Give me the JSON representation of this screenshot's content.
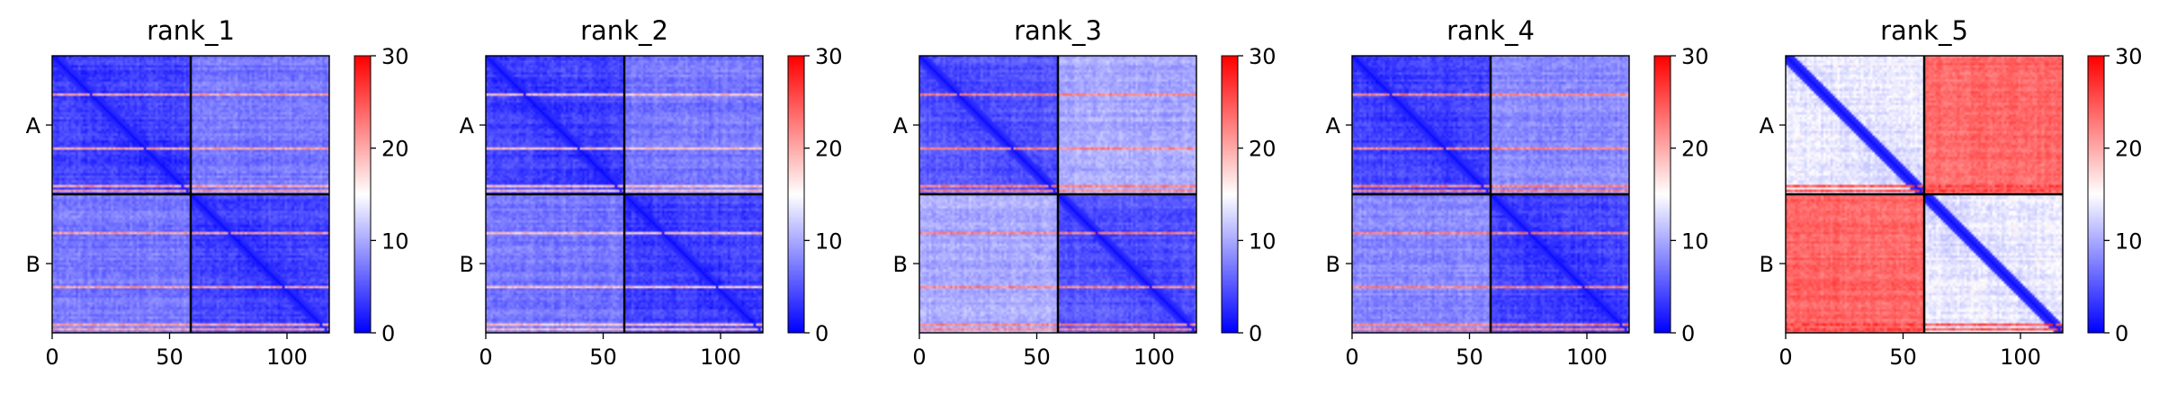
{
  "colors": {
    "low": "#0000ff",
    "mid": "#ffffff",
    "high": "#ff0000",
    "divider": "#000000"
  },
  "chart_data": [
    {
      "type": "heatmap",
      "title": "rank_1",
      "xlabel": "",
      "ylabel": "",
      "x_ticks": [
        0,
        50,
        100
      ],
      "xlim": [
        0,
        118
      ],
      "y_tick_labels": [
        "A",
        "B"
      ],
      "chains": [
        {
          "name": "A",
          "length": 59
        },
        {
          "name": "B",
          "length": 59
        }
      ],
      "colorbar": {
        "min": 0,
        "max": 30,
        "ticks": [
          0,
          10,
          20,
          30
        ]
      },
      "pae_profile": {
        "intra_chain_mean": 3,
        "inter_chain_mean": 7,
        "high_error_rows": [
          16,
          39,
          55,
          57
        ],
        "row_peak": 22
      }
    },
    {
      "type": "heatmap",
      "title": "rank_2",
      "xlabel": "",
      "ylabel": "",
      "x_ticks": [
        0,
        50,
        100
      ],
      "xlim": [
        0,
        118
      ],
      "y_tick_labels": [
        "A",
        "B"
      ],
      "chains": [
        {
          "name": "A",
          "length": 59
        },
        {
          "name": "B",
          "length": 59
        }
      ],
      "colorbar": {
        "min": 0,
        "max": 30,
        "ticks": [
          0,
          10,
          20,
          30
        ]
      },
      "pae_profile": {
        "intra_chain_mean": 3,
        "inter_chain_mean": 7,
        "high_error_rows": [
          16,
          39,
          55,
          57
        ],
        "row_peak": 20
      }
    },
    {
      "type": "heatmap",
      "title": "rank_3",
      "xlabel": "",
      "ylabel": "",
      "x_ticks": [
        0,
        50,
        100
      ],
      "xlim": [
        0,
        118
      ],
      "y_tick_labels": [
        "A",
        "B"
      ],
      "chains": [
        {
          "name": "A",
          "length": 59
        },
        {
          "name": "B",
          "length": 59
        }
      ],
      "colorbar": {
        "min": 0,
        "max": 30,
        "ticks": [
          0,
          10,
          20,
          30
        ]
      },
      "pae_profile": {
        "intra_chain_mean": 4,
        "inter_chain_mean": 10,
        "high_error_rows": [
          16,
          39,
          55,
          57
        ],
        "row_peak": 24
      }
    },
    {
      "type": "heatmap",
      "title": "rank_4",
      "xlabel": "",
      "ylabel": "",
      "x_ticks": [
        0,
        50,
        100
      ],
      "xlim": [
        0,
        118
      ],
      "y_tick_labels": [
        "A",
        "B"
      ],
      "chains": [
        {
          "name": "A",
          "length": 59
        },
        {
          "name": "B",
          "length": 59
        }
      ],
      "colorbar": {
        "min": 0,
        "max": 30,
        "ticks": [
          0,
          10,
          20,
          30
        ]
      },
      "pae_profile": {
        "intra_chain_mean": 3,
        "inter_chain_mean": 8,
        "high_error_rows": [
          16,
          39,
          55,
          57
        ],
        "row_peak": 24
      }
    },
    {
      "type": "heatmap",
      "title": "rank_5",
      "xlabel": "",
      "ylabel": "",
      "x_ticks": [
        0,
        50,
        100
      ],
      "xlim": [
        0,
        118
      ],
      "y_tick_labels": [
        "A",
        "B"
      ],
      "chains": [
        {
          "name": "A",
          "length": 59
        },
        {
          "name": "B",
          "length": 59
        }
      ],
      "colorbar": {
        "min": 0,
        "max": 30,
        "ticks": [
          0,
          10,
          20,
          30
        ]
      },
      "pae_profile": {
        "intra_chain_mean": 13,
        "inter_chain_mean": 24,
        "high_error_rows": [
          55,
          57
        ],
        "row_peak": 28
      }
    }
  ]
}
